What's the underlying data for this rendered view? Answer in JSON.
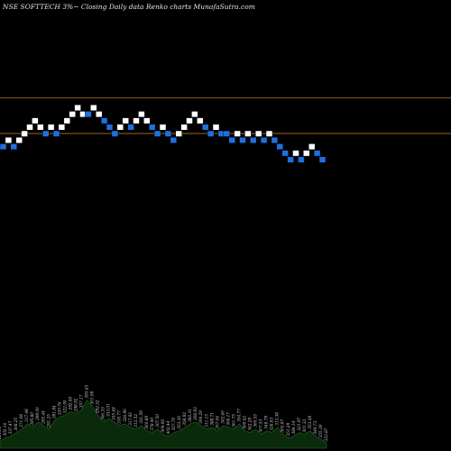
{
  "chart_data": {
    "type": "renko",
    "title": "NSE SOFTTECH 3%~   Closing Daily data  Renko  charts MunafaSutra.com",
    "x_range": [
      0,
      55
    ],
    "price_range": [
      0,
      65
    ],
    "colors": {
      "background": "#000000",
      "up_brick": "#ffffff",
      "down_brick": "#1f6fe0",
      "reference_line": "#9a6a1f",
      "volume_fill": "#0b2a0b",
      "volume_stroke": "#1f6b1f"
    },
    "reference_lines": [
      40.5,
      35.0
    ],
    "bricks": [
      {
        "i": 0,
        "y": 33,
        "dir": "down"
      },
      {
        "i": 1,
        "y": 34,
        "dir": "up"
      },
      {
        "i": 2,
        "y": 33,
        "dir": "down"
      },
      {
        "i": 3,
        "y": 34,
        "dir": "up"
      },
      {
        "i": 4,
        "y": 35,
        "dir": "up"
      },
      {
        "i": 5,
        "y": 36,
        "dir": "up"
      },
      {
        "i": 6,
        "y": 37,
        "dir": "up"
      },
      {
        "i": 7,
        "y": 36,
        "dir": "up"
      },
      {
        "i": 8,
        "y": 35,
        "dir": "down"
      },
      {
        "i": 9,
        "y": 36,
        "dir": "up"
      },
      {
        "i": 10,
        "y": 35,
        "dir": "down"
      },
      {
        "i": 11,
        "y": 36,
        "dir": "up"
      },
      {
        "i": 12,
        "y": 37,
        "dir": "up"
      },
      {
        "i": 13,
        "y": 38,
        "dir": "up"
      },
      {
        "i": 14,
        "y": 39,
        "dir": "up"
      },
      {
        "i": 15,
        "y": 38,
        "dir": "up"
      },
      {
        "i": 16,
        "y": 38,
        "dir": "down"
      },
      {
        "i": 17,
        "y": 39,
        "dir": "up"
      },
      {
        "i": 18,
        "y": 38,
        "dir": "up"
      },
      {
        "i": 19,
        "y": 37,
        "dir": "down"
      },
      {
        "i": 20,
        "y": 36,
        "dir": "down"
      },
      {
        "i": 21,
        "y": 35,
        "dir": "down"
      },
      {
        "i": 22,
        "y": 36,
        "dir": "up"
      },
      {
        "i": 23,
        "y": 37,
        "dir": "up"
      },
      {
        "i": 24,
        "y": 36,
        "dir": "down"
      },
      {
        "i": 25,
        "y": 37,
        "dir": "up"
      },
      {
        "i": 26,
        "y": 38,
        "dir": "up"
      },
      {
        "i": 27,
        "y": 37,
        "dir": "up"
      },
      {
        "i": 28,
        "y": 36,
        "dir": "down"
      },
      {
        "i": 29,
        "y": 35,
        "dir": "down"
      },
      {
        "i": 30,
        "y": 36,
        "dir": "up"
      },
      {
        "i": 31,
        "y": 35,
        "dir": "down"
      },
      {
        "i": 32,
        "y": 34,
        "dir": "down"
      },
      {
        "i": 33,
        "y": 35,
        "dir": "up"
      },
      {
        "i": 34,
        "y": 36,
        "dir": "up"
      },
      {
        "i": 35,
        "y": 37,
        "dir": "up"
      },
      {
        "i": 36,
        "y": 38,
        "dir": "up"
      },
      {
        "i": 37,
        "y": 37,
        "dir": "up"
      },
      {
        "i": 38,
        "y": 36,
        "dir": "down"
      },
      {
        "i": 39,
        "y": 35,
        "dir": "down"
      },
      {
        "i": 40,
        "y": 36,
        "dir": "up"
      },
      {
        "i": 41,
        "y": 35,
        "dir": "down"
      },
      {
        "i": 42,
        "y": 35,
        "dir": "down"
      },
      {
        "i": 43,
        "y": 34,
        "dir": "down"
      },
      {
        "i": 44,
        "y": 35,
        "dir": "up"
      },
      {
        "i": 45,
        "y": 34,
        "dir": "down"
      },
      {
        "i": 46,
        "y": 35,
        "dir": "up"
      },
      {
        "i": 47,
        "y": 34,
        "dir": "down"
      },
      {
        "i": 48,
        "y": 35,
        "dir": "up"
      },
      {
        "i": 49,
        "y": 34,
        "dir": "down"
      },
      {
        "i": 50,
        "y": 35,
        "dir": "up"
      },
      {
        "i": 51,
        "y": 34,
        "dir": "down"
      },
      {
        "i": 52,
        "y": 33,
        "dir": "down"
      },
      {
        "i": 53,
        "y": 32,
        "dir": "down"
      },
      {
        "i": 54,
        "y": 31,
        "dir": "down"
      },
      {
        "i": 55,
        "y": 32,
        "dir": "up"
      },
      {
        "i": 56,
        "y": 31,
        "dir": "down"
      },
      {
        "i": 57,
        "y": 32,
        "dir": "up"
      },
      {
        "i": 58,
        "y": 33,
        "dir": "up"
      },
      {
        "i": 59,
        "y": 32,
        "dir": "down"
      },
      {
        "i": 60,
        "y": 31,
        "dir": "down"
      }
    ],
    "volume": {
      "max": 100,
      "values": [
        8,
        12,
        14,
        18,
        22,
        28,
        24,
        30,
        26,
        22,
        32,
        36,
        38,
        42,
        40,
        44,
        55,
        48,
        38,
        30,
        34,
        30,
        26,
        28,
        24,
        22,
        26,
        20,
        18,
        22,
        16,
        14,
        18,
        20,
        24,
        28,
        30,
        26,
        22,
        24,
        20,
        26,
        24,
        22,
        28,
        20,
        18,
        22,
        16,
        20,
        18,
        24,
        16,
        12,
        14,
        18,
        16,
        20,
        14,
        10,
        6
      ]
    },
    "volume_labels": [
      "324.05",
      "302.16",
      "337.47",
      "368.25",
      "371.08",
      "317.48",
      "395.80",
      "299.06",
      "292.44",
      "291.25",
      "391.84",
      "320.76",
      "322.95",
      "292.40",
      "298.92",
      "357.17",
      "393.65",
      "301.08",
      "292.52",
      "306.33",
      "333.01",
      "335.48",
      "330.77",
      "326.96",
      "317.92",
      "312.52",
      "331.59",
      "360.89",
      "378.40",
      "307.50",
      "304.92",
      "402.44",
      "357.70",
      "353.36",
      "358.92",
      "382.31",
      "308.93",
      "304.29",
      "311.15",
      "388.71",
      "357.04",
      "302.60",
      "306.17",
      "361.75",
      "354.77",
      "360.62",
      "342.29",
      "360.55",
      "307.53",
      "348.79",
      "328.93",
      "313.38",
      "305.97",
      "351.29",
      "384.14",
      "321.97",
      "301.33",
      "353.28",
      "349.73",
      "355.39",
      "323.87"
    ]
  }
}
